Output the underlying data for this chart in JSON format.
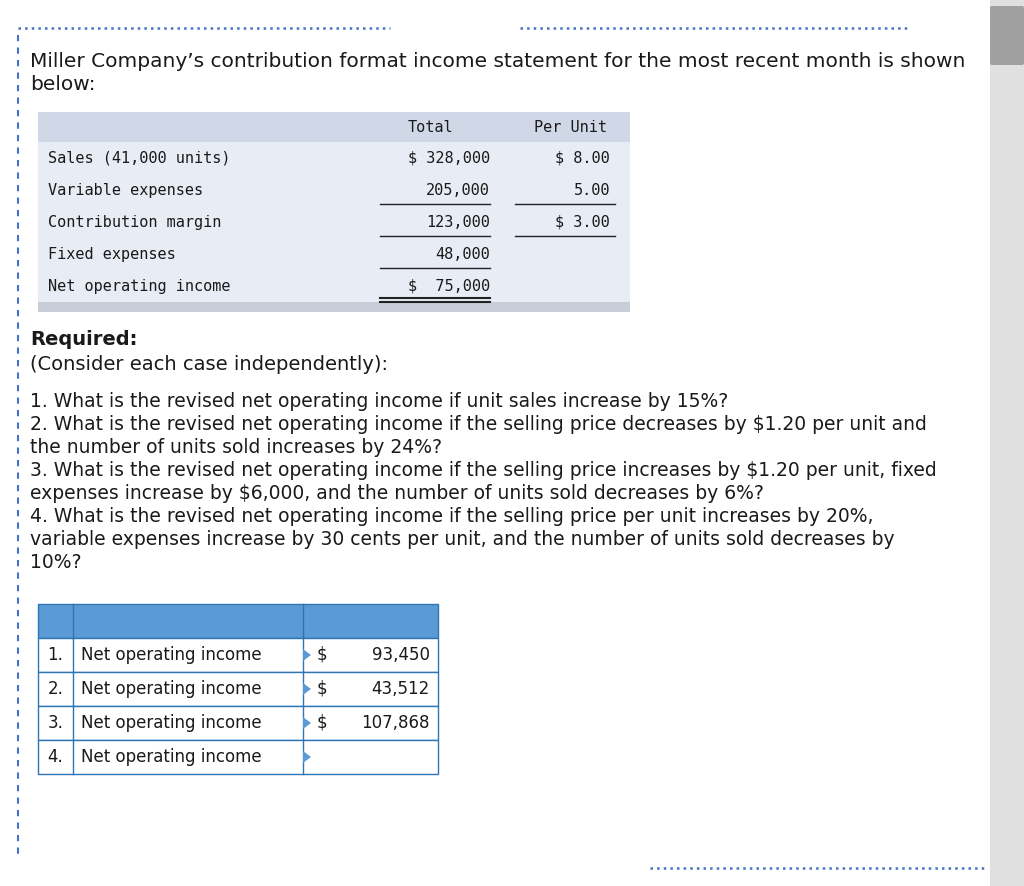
{
  "bg_color": "#ffffff",
  "dotted_line_color": "#4472c4",
  "left_border_color": "#4472c4",
  "intro_line1": "Miller Company’s contribution format income statement for the most recent month is shown",
  "intro_line2": "below:",
  "table1_header_bg": "#d0d8e8",
  "table1_row_bg": "#e8ecf4",
  "table1_gray_bar": "#c8cdd8",
  "table1_col_headers": [
    "Total",
    "Per Unit"
  ],
  "table1_rows": [
    [
      "Sales (41,000 units)",
      "$ 328,000",
      "$ 8.00"
    ],
    [
      "Variable expenses",
      "205,000",
      "5.00"
    ],
    [
      "Contribution margin",
      "123,000",
      "$ 3.00"
    ],
    [
      "Fixed expenses",
      "48,000",
      ""
    ],
    [
      "Net operating income",
      "$  75,000",
      ""
    ]
  ],
  "required_text": "Required:",
  "consider_text": "(Consider each case independently):",
  "q1": "1. What is the revised net operating income if unit sales increase by 15%?",
  "q2a": "2. What is the revised net operating income if the selling price decreases by $1.20 per unit and",
  "q2b": "the number of units sold increases by 24%?",
  "q3a": "3. What is the revised net operating income if the selling price increases by $1.20 per unit, fixed",
  "q3b": "expenses increase by $6,000, and the number of units sold decreases by 6%?",
  "q4a": "4. What is the revised net operating income if the selling price per unit increases by 20%,",
  "q4b": "variable expenses increase by 30 cents per unit, and the number of units sold decreases by",
  "q4c": "10%?",
  "table2_header_bg": "#5b9bd5",
  "table2_border": "#2e75b6",
  "table2_rows": [
    [
      "1.",
      "Net operating income",
      "$",
      "93,450"
    ],
    [
      "2.",
      "Net operating income",
      "$",
      "43,512"
    ],
    [
      "3.",
      "Net operating income",
      "$",
      "107,868"
    ],
    [
      "4.",
      "Net operating income",
      "",
      ""
    ]
  ],
  "font_mono": "DejaVu Sans Mono",
  "font_sans": "DejaVu Sans",
  "scrollbar_bg": "#e0e0e0",
  "scrollbar_thumb": "#a0a0a0"
}
